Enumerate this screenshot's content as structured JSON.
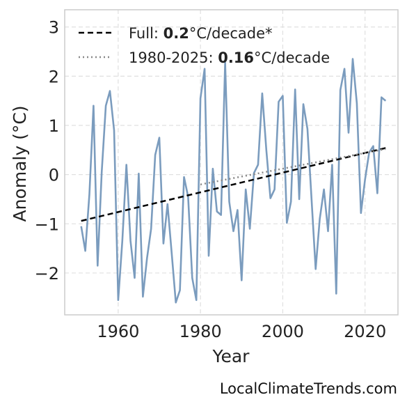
{
  "chart_data": {
    "type": "line",
    "xlabel": "Year",
    "ylabel": "Anomaly (°C)",
    "xlim": [
      1947,
      2028
    ],
    "ylim": [
      -2.85,
      3.35
    ],
    "x_ticks": [
      1960,
      1980,
      2000,
      2020
    ],
    "y_ticks": [
      -2,
      -1,
      0,
      1,
      2,
      3
    ],
    "grid": true,
    "legend_position": "top-left",
    "series": [
      {
        "color": "#7b9cbe",
        "x": [
          1951,
          1952,
          1953,
          1954,
          1955,
          1956,
          1957,
          1958,
          1959,
          1960,
          1961,
          1962,
          1963,
          1964,
          1965,
          1966,
          1967,
          1968,
          1969,
          1970,
          1971,
          1972,
          1973,
          1974,
          1975,
          1976,
          1977,
          1978,
          1979,
          1980,
          1981,
          1982,
          1983,
          1984,
          1985,
          1986,
          1987,
          1988,
          1989,
          1990,
          1991,
          1992,
          1993,
          1994,
          1995,
          1996,
          1997,
          1998,
          1999,
          2000,
          2001,
          2002,
          2003,
          2004,
          2005,
          2006,
          2007,
          2008,
          2009,
          2010,
          2011,
          2012,
          2013,
          2014,
          2015,
          2016,
          2017,
          2018,
          2019,
          2020,
          2021,
          2022,
          2023,
          2024,
          2025
        ],
        "values": [
          -1.05,
          -1.55,
          -0.4,
          1.4,
          -1.85,
          0.05,
          1.4,
          1.7,
          0.9,
          -2.55,
          -1.35,
          0.2,
          -1.35,
          -2.1,
          0.02,
          -2.48,
          -1.7,
          -1.1,
          0.4,
          0.75,
          -1.4,
          -0.6,
          -1.6,
          -2.6,
          -2.35,
          -0.05,
          -0.45,
          -2.1,
          -2.55,
          1.55,
          2.15,
          -1.65,
          0.12,
          -0.75,
          -0.82,
          2.28,
          -0.55,
          -1.15,
          -0.72,
          -2.15,
          -0.3,
          -1.1,
          0.03,
          0.2,
          1.65,
          0.5,
          -0.48,
          -0.3,
          1.48,
          1.6,
          -0.98,
          -0.55,
          1.73,
          -0.5,
          1.43,
          0.93,
          -0.5,
          -1.92,
          -0.9,
          -0.3,
          -1.15,
          0.2,
          -2.42,
          1.72,
          2.15,
          0.85,
          2.35,
          1.45,
          -0.78,
          -0.1,
          0.45,
          0.58,
          -0.38,
          1.57,
          1.5
        ]
      },
      {
        "name": "Full: ",
        "name_bold": "0.2",
        "name_suffix": "°C/decade*",
        "style": "dashed",
        "color": "#000000",
        "x": [
          1951,
          2025
        ],
        "values": [
          -0.94,
          0.54
        ]
      },
      {
        "name": "1980-2025: ",
        "name_bold": "0.16",
        "name_suffix": "°C/decade",
        "style": "dotted",
        "color": "#888888",
        "x": [
          1980,
          2025
        ],
        "values": [
          -0.2,
          0.52
        ]
      }
    ]
  },
  "footer": {
    "source": "LocalClimateTrends.com"
  }
}
